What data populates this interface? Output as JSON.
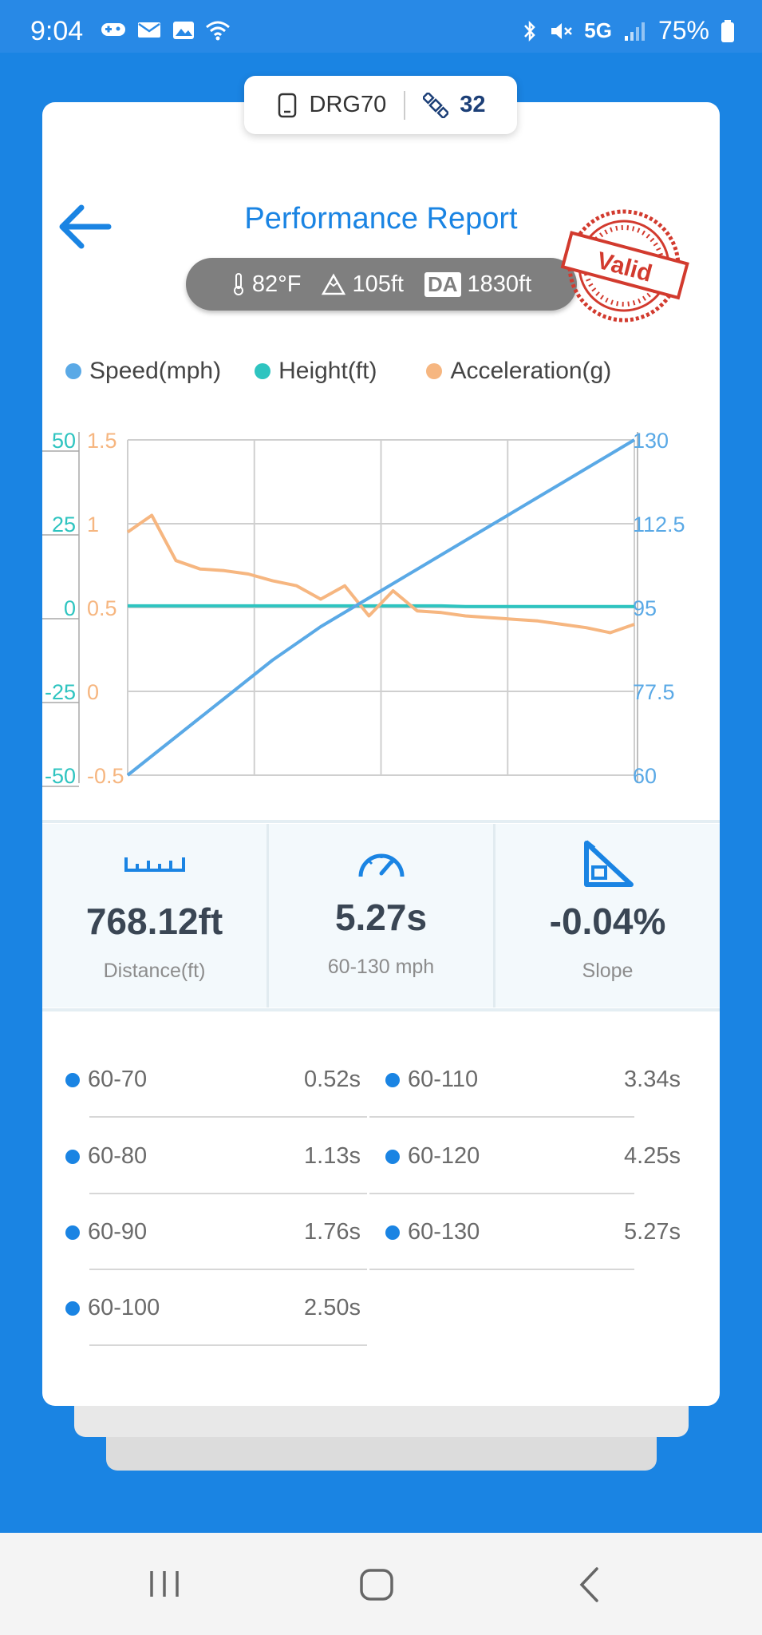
{
  "status_bar": {
    "time": "9:04",
    "network": "5G",
    "battery": "75%"
  },
  "device": {
    "name": "DRG70",
    "satellites": "32"
  },
  "header": {
    "title": "Performance Report",
    "stamp": "Valid"
  },
  "conditions": {
    "temperature": "82°F",
    "elevation": "105ft",
    "da_label": "DA",
    "density_altitude": "1830ft"
  },
  "legend": [
    {
      "label": "Speed(mph)",
      "color": "#5aa9e6"
    },
    {
      "label": "Height(ft)",
      "color": "#2ec4c0"
    },
    {
      "label": "Acceleration(g)",
      "color": "#f6b680"
    }
  ],
  "chart_data": {
    "type": "line",
    "axes": {
      "height_ticks": [
        "50",
        "25",
        "0",
        "-25",
        "-50"
      ],
      "accel_ticks": [
        "1.5",
        "1",
        "0.5",
        "0",
        "-0.5"
      ],
      "speed_ticks": [
        "130",
        "112.5",
        "95",
        "77.5",
        "60"
      ],
      "height_range": [
        -50,
        50
      ],
      "accel_range": [
        -0.5,
        1.5
      ],
      "speed_range": [
        60,
        130
      ]
    },
    "grid": true,
    "series": [
      {
        "name": "Speed(mph)",
        "color": "#5aa9e6",
        "axis": "speed",
        "values": [
          60,
          64,
          68,
          72,
          76,
          80,
          84,
          87.5,
          91,
          94,
          97,
          100,
          103,
          106,
          109,
          112,
          115,
          118,
          121,
          124,
          127,
          130
        ]
      },
      {
        "name": "Height(ft)",
        "color": "#2ec4c0",
        "axis": "height",
        "values": [
          0.5,
          0.5,
          0.5,
          0.5,
          0.5,
          0.5,
          0.5,
          0.5,
          0.5,
          0.5,
          0.5,
          0.5,
          0.5,
          0.5,
          0.3,
          0.3,
          0.3,
          0.3,
          0.3,
          0.3,
          0.3,
          0.3
        ]
      },
      {
        "name": "Acceleration(g)",
        "color": "#f6b680",
        "axis": "accel",
        "values": [
          0.95,
          1.05,
          0.78,
          0.73,
          0.72,
          0.7,
          0.66,
          0.63,
          0.55,
          0.63,
          0.45,
          0.6,
          0.48,
          0.47,
          0.45,
          0.44,
          0.43,
          0.42,
          0.4,
          0.38,
          0.35,
          0.4
        ]
      }
    ]
  },
  "stats": [
    {
      "icon": "ruler-icon",
      "value": "768.12ft",
      "label": "Distance(ft)"
    },
    {
      "icon": "speedometer-icon",
      "value": "5.27s",
      "label": "60-130 mph"
    },
    {
      "icon": "slope-icon",
      "value": "-0.04%",
      "label": "Slope"
    }
  ],
  "splits": [
    {
      "range": "60-70",
      "time": "0.52s"
    },
    {
      "range": "60-80",
      "time": "1.13s"
    },
    {
      "range": "60-90",
      "time": "1.76s"
    },
    {
      "range": "60-100",
      "time": "2.50s"
    },
    {
      "range": "60-110",
      "time": "3.34s"
    },
    {
      "range": "60-120",
      "time": "4.25s"
    },
    {
      "range": "60-130",
      "time": "5.27s"
    }
  ]
}
